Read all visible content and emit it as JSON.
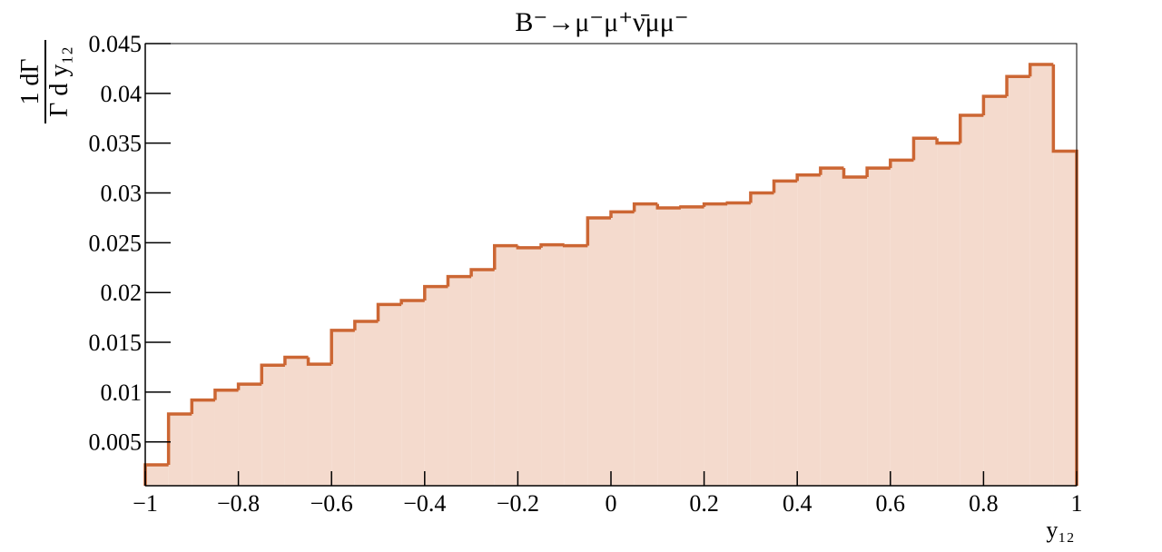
{
  "chart_data": {
    "type": "histogram",
    "title": "B⁻→μ⁻μ⁺ν̄μμ⁻",
    "y_label_numerator": "1 dΓ",
    "y_label_denominator": "Γ d y₁₂",
    "x_label": "y₁₂",
    "color": "#cc6633",
    "fill_color": "#f4dacd",
    "bins": [
      -1,
      -0.95,
      -0.9,
      -0.85,
      -0.8,
      -0.75,
      -0.7,
      -0.65,
      -0.6,
      -0.55,
      -0.5,
      -0.45,
      -0.4,
      -0.35,
      -0.3,
      -0.25,
      -0.2,
      -0.15,
      -0.1,
      -0.05,
      0,
      0.05,
      0.1,
      0.15,
      0.2,
      0.25,
      0.3,
      0.35,
      0.4,
      0.45,
      0.5,
      0.55,
      0.6,
      0.65,
      0.7,
      0.75,
      0.8,
      0.85,
      0.9,
      0.95,
      1
    ],
    "values": [
      0.0027,
      0.0078,
      0.0092,
      0.0102,
      0.0108,
      0.0127,
      0.0135,
      0.0128,
      0.0162,
      0.0171,
      0.0188,
      0.0192,
      0.0206,
      0.0216,
      0.0223,
      0.0247,
      0.0245,
      0.0248,
      0.0247,
      0.0275,
      0.0281,
      0.0289,
      0.0285,
      0.0286,
      0.0289,
      0.029,
      0.03,
      0.0312,
      0.0318,
      0.0325,
      0.0316,
      0.0325,
      0.0333,
      0.0355,
      0.035,
      0.0378,
      0.0397,
      0.0417,
      0.0429,
      0.0342
    ],
    "xlim": [
      -1,
      1
    ],
    "ylim": [
      0.0006,
      0.045
    ],
    "xticks": [
      {
        "value": -1,
        "label": "−1"
      },
      {
        "value": -0.8,
        "label": "−0.8"
      },
      {
        "value": -0.6,
        "label": "−0.6"
      },
      {
        "value": -0.4,
        "label": "−0.4"
      },
      {
        "value": -0.2,
        "label": "−0.2"
      },
      0,
      0.2,
      0.4,
      0.6,
      0.8,
      1
    ],
    "yticks": [
      0.005,
      0.01,
      0.015,
      0.02,
      0.025,
      0.03,
      0.035,
      0.04,
      0.045
    ]
  }
}
